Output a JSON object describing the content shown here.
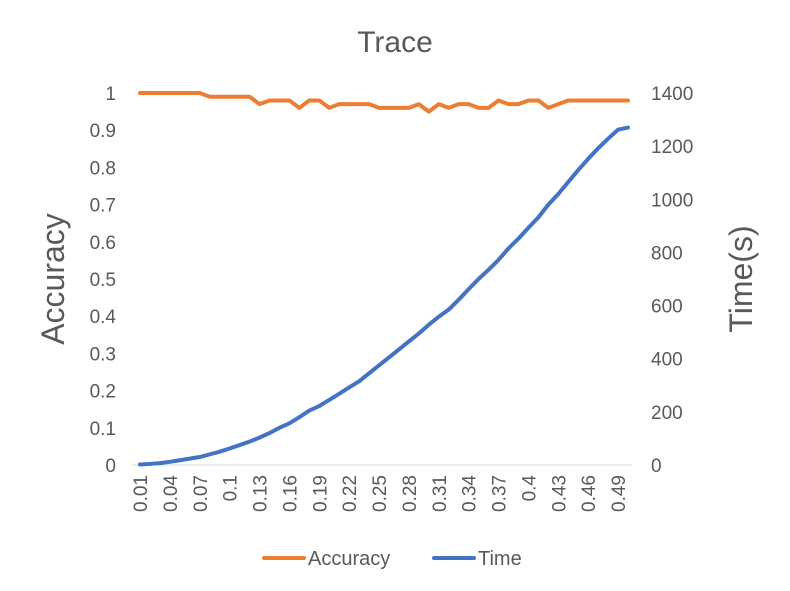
{
  "chart_data": {
    "type": "line",
    "title": "Trace",
    "ylabel_left": "Accuracy",
    "ylabel_right": "Time(s)",
    "xlabel": "",
    "grid": false,
    "legend_position": "bottom",
    "y_left_range": [
      0,
      1
    ],
    "y_left_ticks": [
      "0",
      "0.1",
      "0.2",
      "0.3",
      "0.4",
      "0.5",
      "0.6",
      "0.7",
      "0.8",
      "0.9",
      "1"
    ],
    "y_right_range": [
      0,
      1400
    ],
    "y_right_ticks": [
      "0",
      "200",
      "400",
      "600",
      "800",
      "1000",
      "1200",
      "1400"
    ],
    "x": [
      0.01,
      0.02,
      0.03,
      0.04,
      0.05,
      0.06,
      0.07,
      0.08,
      0.09,
      0.1,
      0.11,
      0.12,
      0.13,
      0.14,
      0.15,
      0.16,
      0.17,
      0.18,
      0.19,
      0.2,
      0.21,
      0.22,
      0.23,
      0.24,
      0.25,
      0.26,
      0.27,
      0.28,
      0.29,
      0.3,
      0.31,
      0.32,
      0.33,
      0.34,
      0.35,
      0.36,
      0.37,
      0.38,
      0.39,
      0.4,
      0.41,
      0.42,
      0.43,
      0.44,
      0.45,
      0.46,
      0.47,
      0.48,
      0.49,
      0.5
    ],
    "x_tick_labels": [
      "0.01",
      "0.04",
      "0.07",
      "0.1",
      "0.13",
      "0.16",
      "0.19",
      "0.22",
      "0.25",
      "0.28",
      "0.31",
      "0.34",
      "0.37",
      "0.4",
      "0.43",
      "0.46",
      "0.49"
    ],
    "series": [
      {
        "name": "Accuracy",
        "axis": "left",
        "color": "#ED7D31",
        "values": [
          1,
          1,
          1,
          1,
          1,
          1,
          1,
          0.99,
          0.99,
          0.99,
          0.99,
          0.99,
          0.97,
          0.98,
          0.98,
          0.98,
          0.96,
          0.98,
          0.98,
          0.96,
          0.97,
          0.97,
          0.97,
          0.97,
          0.96,
          0.96,
          0.96,
          0.96,
          0.97,
          0.95,
          0.97,
          0.96,
          0.97,
          0.97,
          0.96,
          0.96,
          0.98,
          0.97,
          0.97,
          0.98,
          0.98,
          0.96,
          0.97,
          0.98,
          0.98,
          0.98,
          0.98,
          0.98,
          0.98,
          0.98
        ]
      },
      {
        "name": "Time",
        "axis": "right",
        "color": "#4472C4",
        "values": [
          2,
          4,
          7,
          12,
          18,
          24,
          30,
          40,
          50,
          62,
          75,
          88,
          103,
          120,
          140,
          157,
          180,
          205,
          222,
          245,
          268,
          292,
          315,
          345,
          375,
          405,
          435,
          465,
          495,
          528,
          558,
          585,
          622,
          662,
          700,
          735,
          772,
          815,
          852,
          893,
          932,
          980,
          1020,
          1065,
          1110,
          1152,
          1192,
          1228,
          1262,
          1270
        ]
      }
    ]
  }
}
